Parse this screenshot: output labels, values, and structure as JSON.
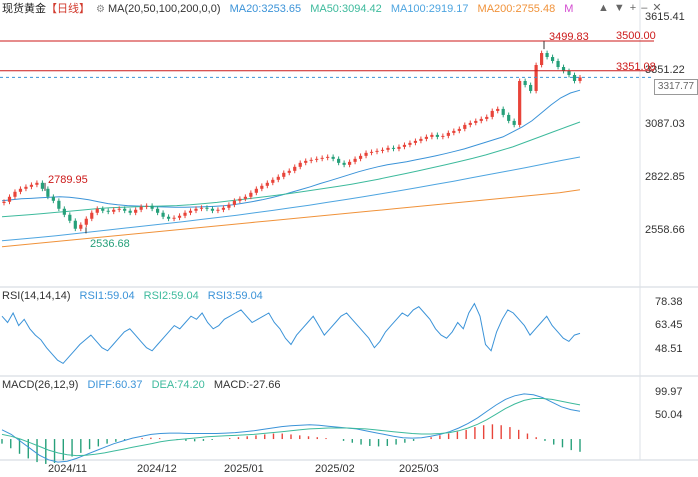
{
  "legend": {
    "title": "现货黄金",
    "period": "【日线】",
    "ma_label": "MA(20,50,100,200,0,0)",
    "ma20": "MA20:3253.65",
    "ma50": "MA50:3094.42",
    "ma100": "MA100:2919.17",
    "ma200": "MA200:2755.48",
    "ma_marker": "M"
  },
  "rsi_legend": {
    "label": "RSI(14,14,14)",
    "rsi1": "RSI1:59.04",
    "rsi2": "RSI2:59.04",
    "rsi3": "RSI3:59.04"
  },
  "macd_legend": {
    "label": "MACD(26,12,9)",
    "diff": "DIFF:60.37",
    "dea": "DEA:74.20",
    "macd": "MACD:-27.66"
  },
  "price_axis": [
    "3615.41",
    "3351.22",
    "3087.03",
    "2822.85",
    "2558.66"
  ],
  "rsi_axis": [
    "78.38",
    "63.45",
    "48.51"
  ],
  "macd_axis": [
    "99.97",
    "50.04"
  ],
  "x_axis": [
    "2024/11",
    "2024/12",
    "2025/01",
    "2025/02",
    "2025/03"
  ],
  "hlines": {
    "resistance_high": "3500.00",
    "resistance_low": "3351.08"
  },
  "annotations": {
    "high": "3499.83",
    "left_high": "2789.95",
    "low": "2536.68"
  },
  "current_price": "3317.77",
  "colors": {
    "up": "#e8443a",
    "down": "#26a07a",
    "ma20": "#3b93d8",
    "ma50": "#3dba9c",
    "ma100": "#4ea5e0",
    "ma200": "#f0923a",
    "hline": "#cc1a1a"
  },
  "chart_data": {
    "type": "candlestick",
    "title": "现货黄金 日线",
    "ylim": [
      2500,
      3615.41
    ],
    "close_series": [
      2695,
      2720,
      2745,
      2760,
      2770,
      2780,
      2790,
      2760,
      2720,
      2700,
      2660,
      2630,
      2600,
      2560,
      2580,
      2610,
      2640,
      2660,
      2650,
      2645,
      2655,
      2660,
      2650,
      2640,
      2655,
      2670,
      2675,
      2660,
      2640,
      2620,
      2610,
      2615,
      2625,
      2640,
      2650,
      2660,
      2665,
      2660,
      2650,
      2655,
      2665,
      2680,
      2700,
      2710,
      2720,
      2740,
      2760,
      2775,
      2790,
      2805,
      2820,
      2840,
      2850,
      2870,
      2890,
      2900,
      2905,
      2910,
      2915,
      2920,
      2910,
      2890,
      2880,
      2895,
      2910,
      2925,
      2940,
      2945,
      2950,
      2955,
      2965,
      2960,
      2970,
      2980,
      2990,
      3000,
      3010,
      3020,
      3030,
      3020,
      3025,
      3040,
      3050,
      3060,
      3080,
      3090,
      3100,
      3110,
      3120,
      3150,
      3160,
      3130,
      3100,
      3080,
      3300,
      3280,
      3250,
      3380,
      3440,
      3420,
      3400,
      3370,
      3350,
      3330,
      3300,
      3317.77
    ],
    "ma20": [
      2700,
      2705,
      2710,
      2712,
      2715,
      2718,
      2720,
      2718,
      2712,
      2705,
      2695,
      2686,
      2680,
      2676,
      2674,
      2672,
      2670,
      2669,
      2668,
      2668,
      2669,
      2670,
      2672,
      2675,
      2680,
      2688,
      2696,
      2705,
      2716,
      2728,
      2742,
      2756,
      2770,
      2786,
      2800,
      2815,
      2830,
      2845,
      2858,
      2870,
      2880,
      2888,
      2895,
      2905,
      2915,
      2925,
      2936,
      2948,
      2960,
      2975,
      2990,
      3005,
      3020,
      3045,
      3070,
      3100,
      3140,
      3180,
      3215,
      3240,
      3253.65
    ],
    "ma50": [
      2620,
      2625,
      2630,
      2636,
      2642,
      2648,
      2654,
      2660,
      2665,
      2668,
      2670,
      2672,
      2674,
      2676,
      2680,
      2686,
      2692,
      2700,
      2708,
      2716,
      2724,
      2733,
      2742,
      2752,
      2762,
      2772,
      2783,
      2795,
      2808,
      2822,
      2836,
      2850,
      2865,
      2880,
      2896,
      2912,
      2930,
      2950,
      2970,
      2995,
      3020,
      3045,
      3070,
      3094.42
    ],
    "ma100": [
      2500,
      2508,
      2516,
      2525,
      2535,
      2545,
      2555,
      2565,
      2575,
      2585,
      2595,
      2606,
      2617,
      2628,
      2640,
      2652,
      2665,
      2678,
      2692,
      2706,
      2720,
      2735,
      2750,
      2766,
      2782,
      2798,
      2815,
      2832,
      2849,
      2866,
      2884,
      2902,
      2919.17
    ],
    "ma200": [
      2470,
      2480,
      2490,
      2500,
      2510,
      2520,
      2530,
      2540,
      2550,
      2560,
      2570,
      2580,
      2590,
      2600,
      2610,
      2620,
      2630,
      2640,
      2650,
      2660,
      2670,
      2680,
      2690,
      2700,
      2710,
      2720,
      2730,
      2740,
      2755.48
    ],
    "rsi": [
      70,
      66,
      72,
      64,
      68,
      62,
      58,
      55,
      50,
      46,
      42,
      40,
      44,
      48,
      52,
      55,
      58,
      54,
      50,
      48,
      52,
      56,
      60,
      62,
      58,
      54,
      50,
      48,
      52,
      56,
      60,
      64,
      62,
      66,
      70,
      68,
      72,
      66,
      62,
      64,
      68,
      70,
      72,
      74,
      70,
      66,
      68,
      70,
      72,
      66,
      62,
      56,
      52,
      58,
      62,
      66,
      70,
      64,
      58,
      62,
      66,
      70,
      72,
      68,
      64,
      60,
      56,
      50,
      54,
      60,
      64,
      68,
      72,
      70,
      74,
      76,
      72,
      68,
      62,
      58,
      56,
      60,
      66,
      62,
      72,
      78,
      70,
      52,
      48,
      60,
      68,
      74,
      72,
      68,
      64,
      58,
      62,
      66,
      70,
      64,
      60,
      56,
      54,
      58,
      59.04
    ],
    "macd": [
      -10,
      -20,
      -32,
      -42,
      -50,
      -54,
      -52,
      -46,
      -38,
      -30,
      -22,
      -16,
      -10,
      -6,
      -3,
      0,
      2,
      3,
      2,
      0,
      -2,
      -4,
      -5,
      -4,
      -2,
      0,
      2,
      4,
      6,
      8,
      10,
      12,
      12,
      10,
      8,
      6,
      4,
      2,
      0,
      -4,
      -8,
      -12,
      -15,
      -16,
      -15,
      -12,
      -8,
      -4,
      0,
      4,
      8,
      12,
      16,
      20,
      26,
      30,
      32,
      30,
      26,
      20,
      12,
      4,
      -4,
      -12,
      -18,
      -24,
      -27.66
    ],
    "diff": [
      20,
      10,
      -5,
      -20,
      -35,
      -45,
      -50,
      -48,
      -42,
      -34,
      -26,
      -18,
      -10,
      -4,
      2,
      6,
      10,
      12,
      13,
      13,
      12,
      12,
      12,
      12,
      13,
      14,
      16,
      18,
      21,
      24,
      27,
      29,
      30,
      31,
      30,
      28,
      26,
      24,
      22,
      18,
      14,
      10,
      6,
      3,
      2,
      3,
      6,
      10,
      16,
      24,
      34,
      46,
      60,
      74,
      86,
      94,
      98,
      96,
      90,
      80,
      70,
      64,
      60.37
    ],
    "dea": [
      10,
      6,
      0,
      -8,
      -16,
      -24,
      -30,
      -34,
      -36,
      -35,
      -33,
      -30,
      -26,
      -22,
      -18,
      -14,
      -10,
      -6,
      -3,
      -1,
      1,
      3,
      5,
      6,
      7,
      8,
      9,
      10,
      12,
      14,
      16,
      18,
      20,
      22,
      23,
      24,
      24,
      24,
      23,
      22,
      20,
      18,
      16,
      14,
      12,
      11,
      11,
      12,
      14,
      18,
      24,
      32,
      42,
      54,
      66,
      76,
      84,
      88,
      88,
      86,
      82,
      78,
      74.2
    ]
  }
}
